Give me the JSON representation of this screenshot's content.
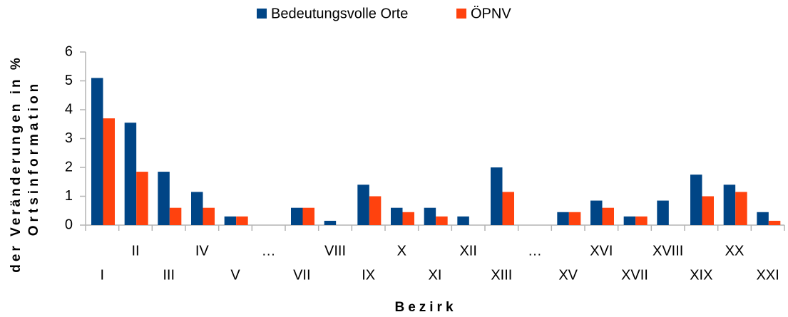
{
  "chart_data": {
    "type": "bar",
    "legend": "top",
    "y_label": [
      "Ortsinformation",
      "der Veränderungen in %"
    ],
    "x_label": "Bezirk",
    "categories": [
      "I",
      "II",
      "III",
      "IV",
      "V",
      "…",
      "VII",
      "VIII",
      "IX",
      "X",
      "XI",
      "XII",
      "XIII",
      "…",
      "XV",
      "XVI",
      "XVII",
      "XVIII",
      "XIX",
      "XX",
      "XXI"
    ],
    "series": [
      {
        "name": "Bedeutungsvolle Orte",
        "color": "#004586",
        "values": [
          5.1,
          3.55,
          1.85,
          1.15,
          0.3,
          0,
          0.6,
          0.15,
          1.4,
          0.6,
          0.6,
          0.3,
          2.0,
          0,
          0.45,
          0.85,
          0.3,
          0.85,
          1.75,
          1.4,
          0.45
        ]
      },
      {
        "name": "ÖPNV",
        "color": "#ff420e",
        "values": [
          3.7,
          1.85,
          0.6,
          0.6,
          0.3,
          0,
          0.6,
          0,
          1.0,
          0.45,
          0.3,
          0,
          1.15,
          0,
          0.45,
          0.6,
          0.3,
          0,
          1.0,
          1.15,
          0.15
        ]
      }
    ],
    "ylim": [
      0,
      6
    ],
    "yticks": [
      0,
      1,
      2,
      3,
      4,
      5,
      6
    ],
    "grid": false
  }
}
